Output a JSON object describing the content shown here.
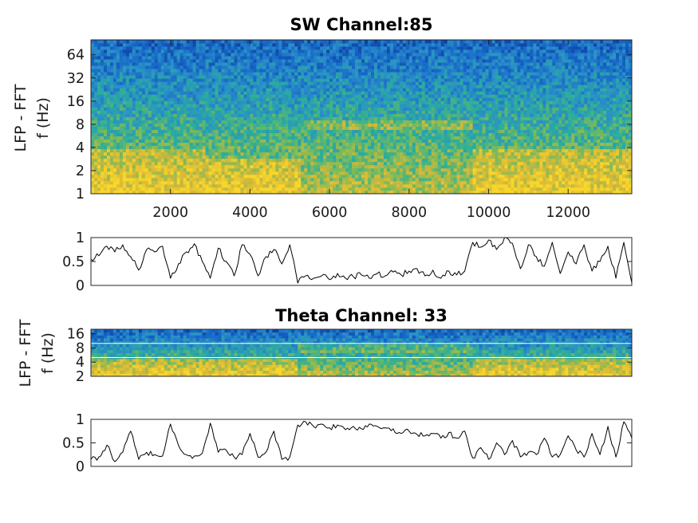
{
  "chart_data": [
    {
      "type": "heatmap",
      "title": "SW Channel:85",
      "ylabel_lines": [
        "LFP - FFT",
        "f (Hz)"
      ],
      "yscale": "log",
      "x_ticks": [
        "2000",
        "4000",
        "6000",
        "8000",
        "10000",
        "12000"
      ],
      "x_tick_values": [
        2000,
        4000,
        6000,
        8000,
        10000,
        12000
      ],
      "y_ticks": [
        "1",
        "2",
        "4",
        "8",
        "16",
        "32",
        "64"
      ],
      "y_tick_values": [
        1,
        2,
        4,
        8,
        16,
        32,
        64
      ],
      "xlim": [
        0,
        13600
      ],
      "ylim": [
        1,
        100
      ],
      "colormap": [
        "#0d3d9e",
        "#1768c9",
        "#2a8fc8",
        "#2bae9b",
        "#7cba5a",
        "#d8b938",
        "#f9d72a"
      ],
      "high_power_segments": [
        {
          "x": [
            0,
            2900
          ],
          "f": [
            1,
            4
          ]
        },
        {
          "x": [
            2900,
            5300
          ],
          "f": [
            1,
            3
          ]
        },
        {
          "x": [
            5300,
            9600
          ],
          "f": [
            7,
            9
          ]
        },
        {
          "x": [
            9600,
            13600
          ],
          "f": [
            1,
            4
          ]
        }
      ]
    },
    {
      "type": "line",
      "title": "",
      "y_ticks": [
        "0",
        "0.5",
        "1"
      ],
      "y_tick_values": [
        0,
        0.5,
        1
      ],
      "xlim": [
        0,
        13600
      ],
      "ylim": [
        0,
        1
      ],
      "x": [
        0,
        200,
        400,
        600,
        800,
        1000,
        1200,
        1400,
        1600,
        1800,
        2000,
        2200,
        2400,
        2600,
        2800,
        3000,
        3200,
        3400,
        3600,
        3800,
        4000,
        4200,
        4400,
        4600,
        4800,
        5000,
        5200,
        5400,
        5600,
        5800,
        6000,
        6200,
        6400,
        6600,
        6800,
        7000,
        7200,
        7400,
        7600,
        7800,
        8000,
        8200,
        8400,
        8600,
        8800,
        9000,
        9200,
        9400,
        9600,
        9800,
        10000,
        10200,
        10400,
        10600,
        10800,
        11000,
        11200,
        11400,
        11600,
        11800,
        12000,
        12200,
        12400,
        12600,
        12800,
        13000,
        13200,
        13400,
        13600
      ],
      "y": [
        0.55,
        0.62,
        0.82,
        0.7,
        0.85,
        0.6,
        0.32,
        0.75,
        0.7,
        0.82,
        0.15,
        0.45,
        0.7,
        0.87,
        0.5,
        0.15,
        0.78,
        0.5,
        0.2,
        0.85,
        0.65,
        0.2,
        0.6,
        0.75,
        0.45,
        0.85,
        0.05,
        0.2,
        0.15,
        0.2,
        0.12,
        0.25,
        0.15,
        0.18,
        0.22,
        0.15,
        0.25,
        0.2,
        0.28,
        0.22,
        0.3,
        0.35,
        0.2,
        0.32,
        0.15,
        0.3,
        0.22,
        0.3,
        0.9,
        0.8,
        0.95,
        0.75,
        1.0,
        0.88,
        0.35,
        0.85,
        0.6,
        0.4,
        0.9,
        0.25,
        0.7,
        0.45,
        0.85,
        0.3,
        0.5,
        0.82,
        0.15,
        0.9,
        0.05
      ]
    },
    {
      "type": "heatmap",
      "title": "Theta Channel: 33",
      "ylabel_lines": [
        "LFP - FFT",
        "f (Hz)"
      ],
      "yscale": "log",
      "y_ticks": [
        "2",
        "4",
        "8",
        "16"
      ],
      "y_tick_values": [
        2,
        4,
        8,
        16
      ],
      "xlim": [
        0,
        13600
      ],
      "ylim": [
        2,
        20
      ],
      "colormap": [
        "#0d3d9e",
        "#1768c9",
        "#2a8fc8",
        "#2bae9b",
        "#7cba5a",
        "#d8b938",
        "#f9d72a"
      ],
      "high_power_segments": [
        {
          "x": [
            0,
            5200
          ],
          "f": [
            2,
            5
          ]
        },
        {
          "x": [
            5200,
            9600
          ],
          "f": [
            6,
            10
          ]
        },
        {
          "x": [
            9600,
            13600
          ],
          "f": [
            2,
            5
          ]
        }
      ],
      "reference_lines_hz": [
        5,
        10
      ]
    },
    {
      "type": "line",
      "title": "",
      "y_ticks": [
        "0",
        "0.5",
        "1"
      ],
      "y_tick_values": [
        0,
        0.5,
        1
      ],
      "xlim": [
        0,
        13600
      ],
      "ylim": [
        0,
        1
      ],
      "x": [
        0,
        200,
        400,
        600,
        800,
        1000,
        1200,
        1400,
        1600,
        1800,
        2000,
        2200,
        2400,
        2600,
        2800,
        3000,
        3200,
        3400,
        3600,
        3800,
        4000,
        4200,
        4400,
        4600,
        4800,
        5000,
        5200,
        5400,
        5600,
        5800,
        6000,
        6200,
        6400,
        6600,
        6800,
        7000,
        7200,
        7400,
        7600,
        7800,
        8000,
        8200,
        8400,
        8600,
        8800,
        9000,
        9200,
        9400,
        9600,
        9800,
        10000,
        10200,
        10400,
        10600,
        10800,
        11000,
        11200,
        11400,
        11600,
        11800,
        12000,
        12200,
        12400,
        12600,
        12800,
        13000,
        13200,
        13400,
        13600
      ],
      "y": [
        0.15,
        0.2,
        0.45,
        0.1,
        0.3,
        0.75,
        0.15,
        0.3,
        0.25,
        0.22,
        0.9,
        0.45,
        0.25,
        0.22,
        0.28,
        0.92,
        0.3,
        0.35,
        0.2,
        0.25,
        0.7,
        0.2,
        0.3,
        0.75,
        0.15,
        0.2,
        0.88,
        0.95,
        0.85,
        0.9,
        0.82,
        0.88,
        0.78,
        0.85,
        0.8,
        0.9,
        0.85,
        0.82,
        0.8,
        0.7,
        0.75,
        0.68,
        0.65,
        0.7,
        0.6,
        0.72,
        0.6,
        0.75,
        0.18,
        0.4,
        0.15,
        0.5,
        0.25,
        0.55,
        0.2,
        0.3,
        0.25,
        0.6,
        0.2,
        0.25,
        0.65,
        0.35,
        0.2,
        0.7,
        0.25,
        0.85,
        0.2,
        0.95,
        0.6
      ]
    }
  ]
}
